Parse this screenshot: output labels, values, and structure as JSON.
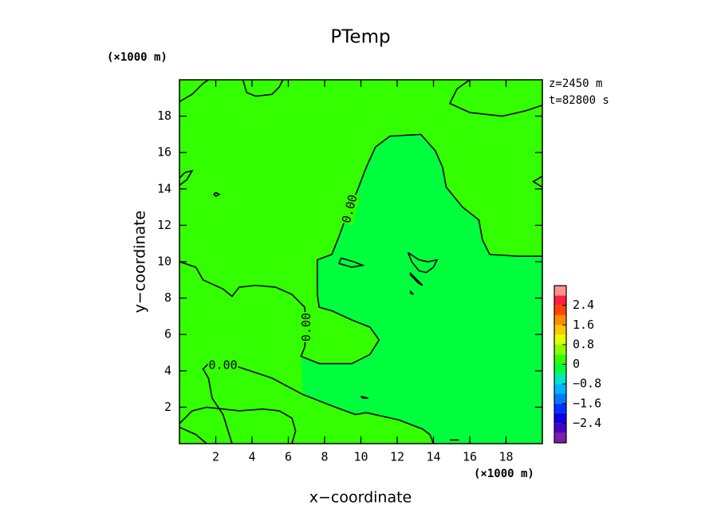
{
  "chart_data": {
    "type": "contour",
    "title": "PTemp",
    "xlabel": "x−coordinate",
    "ylabel": "y−coordinate",
    "x_unit": "(×1000 m)",
    "y_unit": "(×1000 m)",
    "annotations": [
      "z=2450 m",
      "t=82800 s"
    ],
    "xlim": [
      0,
      20
    ],
    "ylim": [
      0,
      20
    ],
    "xticks": [
      2,
      4,
      6,
      8,
      10,
      12,
      14,
      16,
      18
    ],
    "yticks": [
      2,
      4,
      6,
      8,
      10,
      12,
      14,
      16,
      18
    ],
    "contours": [
      {
        "level": 0,
        "x": [
          2.9,
          2.4,
          1.8,
          1.6,
          1.3,
          1.6,
          3.3,
          5.1,
          6.8,
          8.6,
          9.7,
          10.3,
          12.1,
          13.4,
          13.8,
          14.0
        ],
        "y": [
          0.0,
          1.6,
          2.5,
          3.6,
          4.1,
          4.4,
          4.2,
          3.6,
          2.7,
          2.0,
          1.6,
          1.7,
          1.3,
          0.8,
          0.5,
          0.0
        ]
      },
      {
        "level": 0,
        "x": [
          0,
          0.9,
          1.3,
          2.4,
          2.9,
          3.3,
          4.2,
          5.3,
          6.2,
          6.9,
          7.0,
          6.9,
          6.7,
          7.7,
          9.5,
          10.5,
          11.0,
          10.5,
          9.5,
          8.4,
          7.7,
          7.6,
          7.6,
          8.4,
          8.8,
          9.2,
          9.8,
          10.3,
          10.8,
          11.6,
          13.3,
          14.1,
          14.5,
          14.7,
          15.6,
          16.5,
          16.7,
          17.1,
          18.7,
          20.0
        ],
        "y": [
          10.0,
          9.7,
          9.0,
          8.5,
          8.1,
          8.6,
          8.7,
          8.6,
          8.2,
          7.5,
          6.4,
          5.3,
          4.8,
          4.4,
          4.4,
          4.9,
          5.7,
          6.4,
          6.8,
          7.3,
          7.5,
          8.2,
          10.1,
          10.4,
          11.4,
          12.5,
          13.9,
          15.2,
          16.3,
          16.9,
          17.0,
          16.1,
          15.2,
          14.1,
          13.0,
          12.3,
          11.2,
          10.4,
          10.3,
          10.3
        ]
      },
      {
        "level": 0,
        "x": [
          3.5,
          3.7,
          4.2,
          5.1,
          5.5,
          5.7
        ],
        "y": [
          20.0,
          19.3,
          19.1,
          19.2,
          19.6,
          20.0
        ]
      },
      {
        "level": 0,
        "x": [
          16.0,
          15.3,
          14.9,
          16.0,
          17.8,
          19.1,
          20.0
        ],
        "y": [
          20.0,
          19.5,
          18.7,
          18.2,
          18.0,
          18.3,
          18.6
        ]
      },
      {
        "level": 0,
        "x": [
          0,
          0.7,
          1.3,
          1.6
        ],
        "y": [
          18.8,
          19.2,
          19.8,
          20.0
        ]
      },
      {
        "level": 0,
        "x": [
          0,
          0.4,
          0.7,
          0.3,
          0
        ],
        "y": [
          14.2,
          14.5,
          15.0,
          14.9,
          14.6
        ]
      },
      {
        "level": 0,
        "x": [
          2.0,
          2.2,
          2.0,
          1.9,
          2.0
        ],
        "y": [
          13.8,
          13.7,
          13.6,
          13.7,
          13.8
        ]
      },
      {
        "level": 0,
        "x": [
          20,
          19.5,
          20
        ],
        "y": [
          14.7,
          14.4,
          14.1
        ]
      },
      {
        "level": 0,
        "x": [
          0,
          0.7,
          1.5,
          3.3,
          4.6,
          5.5,
          6.2,
          6.4,
          6.2
        ],
        "y": [
          1.1,
          1.8,
          2.0,
          1.8,
          1.9,
          1.8,
          1.4,
          0.7,
          0.0
        ]
      },
      {
        "level": 0,
        "x": [
          0,
          0.9,
          1.5
        ],
        "y": [
          0.9,
          0.5,
          0.0
        ]
      },
      {
        "level": 0,
        "x": [
          8.9,
          9.6,
          10.1,
          9.5,
          8.8,
          8.9
        ],
        "y": [
          10.2,
          10.0,
          9.8,
          9.7,
          9.9,
          10.2
        ]
      },
      {
        "level": 0,
        "x": [
          12.6,
          13.2,
          13.7,
          14.2,
          14.0,
          13.6,
          13.2,
          12.8,
          12.6
        ],
        "y": [
          10.5,
          10.1,
          10.0,
          10.1,
          9.7,
          9.4,
          9.5,
          10.0,
          10.5
        ]
      },
      {
        "level": 0,
        "x": [
          12.7,
          13.4,
          13.2,
          12.7
        ],
        "y": [
          9.4,
          8.7,
          8.8,
          9.3
        ]
      },
      {
        "level": 0,
        "x": [
          12.7,
          12.9,
          12.7
        ],
        "y": [
          8.4,
          8.2,
          8.3
        ]
      },
      {
        "level": 0,
        "x": [
          10.0,
          10.4,
          10.1,
          10.0
        ],
        "y": [
          2.6,
          2.5,
          2.5,
          2.6
        ]
      },
      {
        "level": 0,
        "x": [
          14.9,
          15.4
        ],
        "y": [
          0.2,
          0.2
        ]
      }
    ],
    "contour_labels": [
      {
        "value": 0,
        "label": "0.00",
        "x": 2.4,
        "y": 4.3
      },
      {
        "value": 0,
        "label": "0.00",
        "x": 7.0,
        "y": 6.4
      },
      {
        "value": 0,
        "label": "0.00",
        "x": 9.4,
        "y": 12.9
      }
    ],
    "colorbar": {
      "levels": [
        -3.2,
        -2.8,
        -2.4,
        -2.0,
        -1.6,
        -1.2,
        -0.8,
        -0.4,
        0,
        0.4,
        0.8,
        1.2,
        1.6,
        2.0,
        2.4,
        2.8,
        3.2
      ],
      "colors": [
        "#7a1fa8",
        "#4600c8",
        "#0a00e6",
        "#0032ff",
        "#0078ff",
        "#00b4ff",
        "#00e6c8",
        "#00ff3c",
        "#33ff00",
        "#8cff00",
        "#e6ff00",
        "#ffc800",
        "#ff8c00",
        "#ff4600",
        "#ff1e3c",
        "#ff9090"
      ],
      "ticks": [
        {
          "value": -2.4,
          "label": "−2.4"
        },
        {
          "value": -1.6,
          "label": "−1.6"
        },
        {
          "value": -0.8,
          "label": "−0.8"
        },
        0,
        0.8,
        1.6,
        2.4
      ]
    }
  }
}
